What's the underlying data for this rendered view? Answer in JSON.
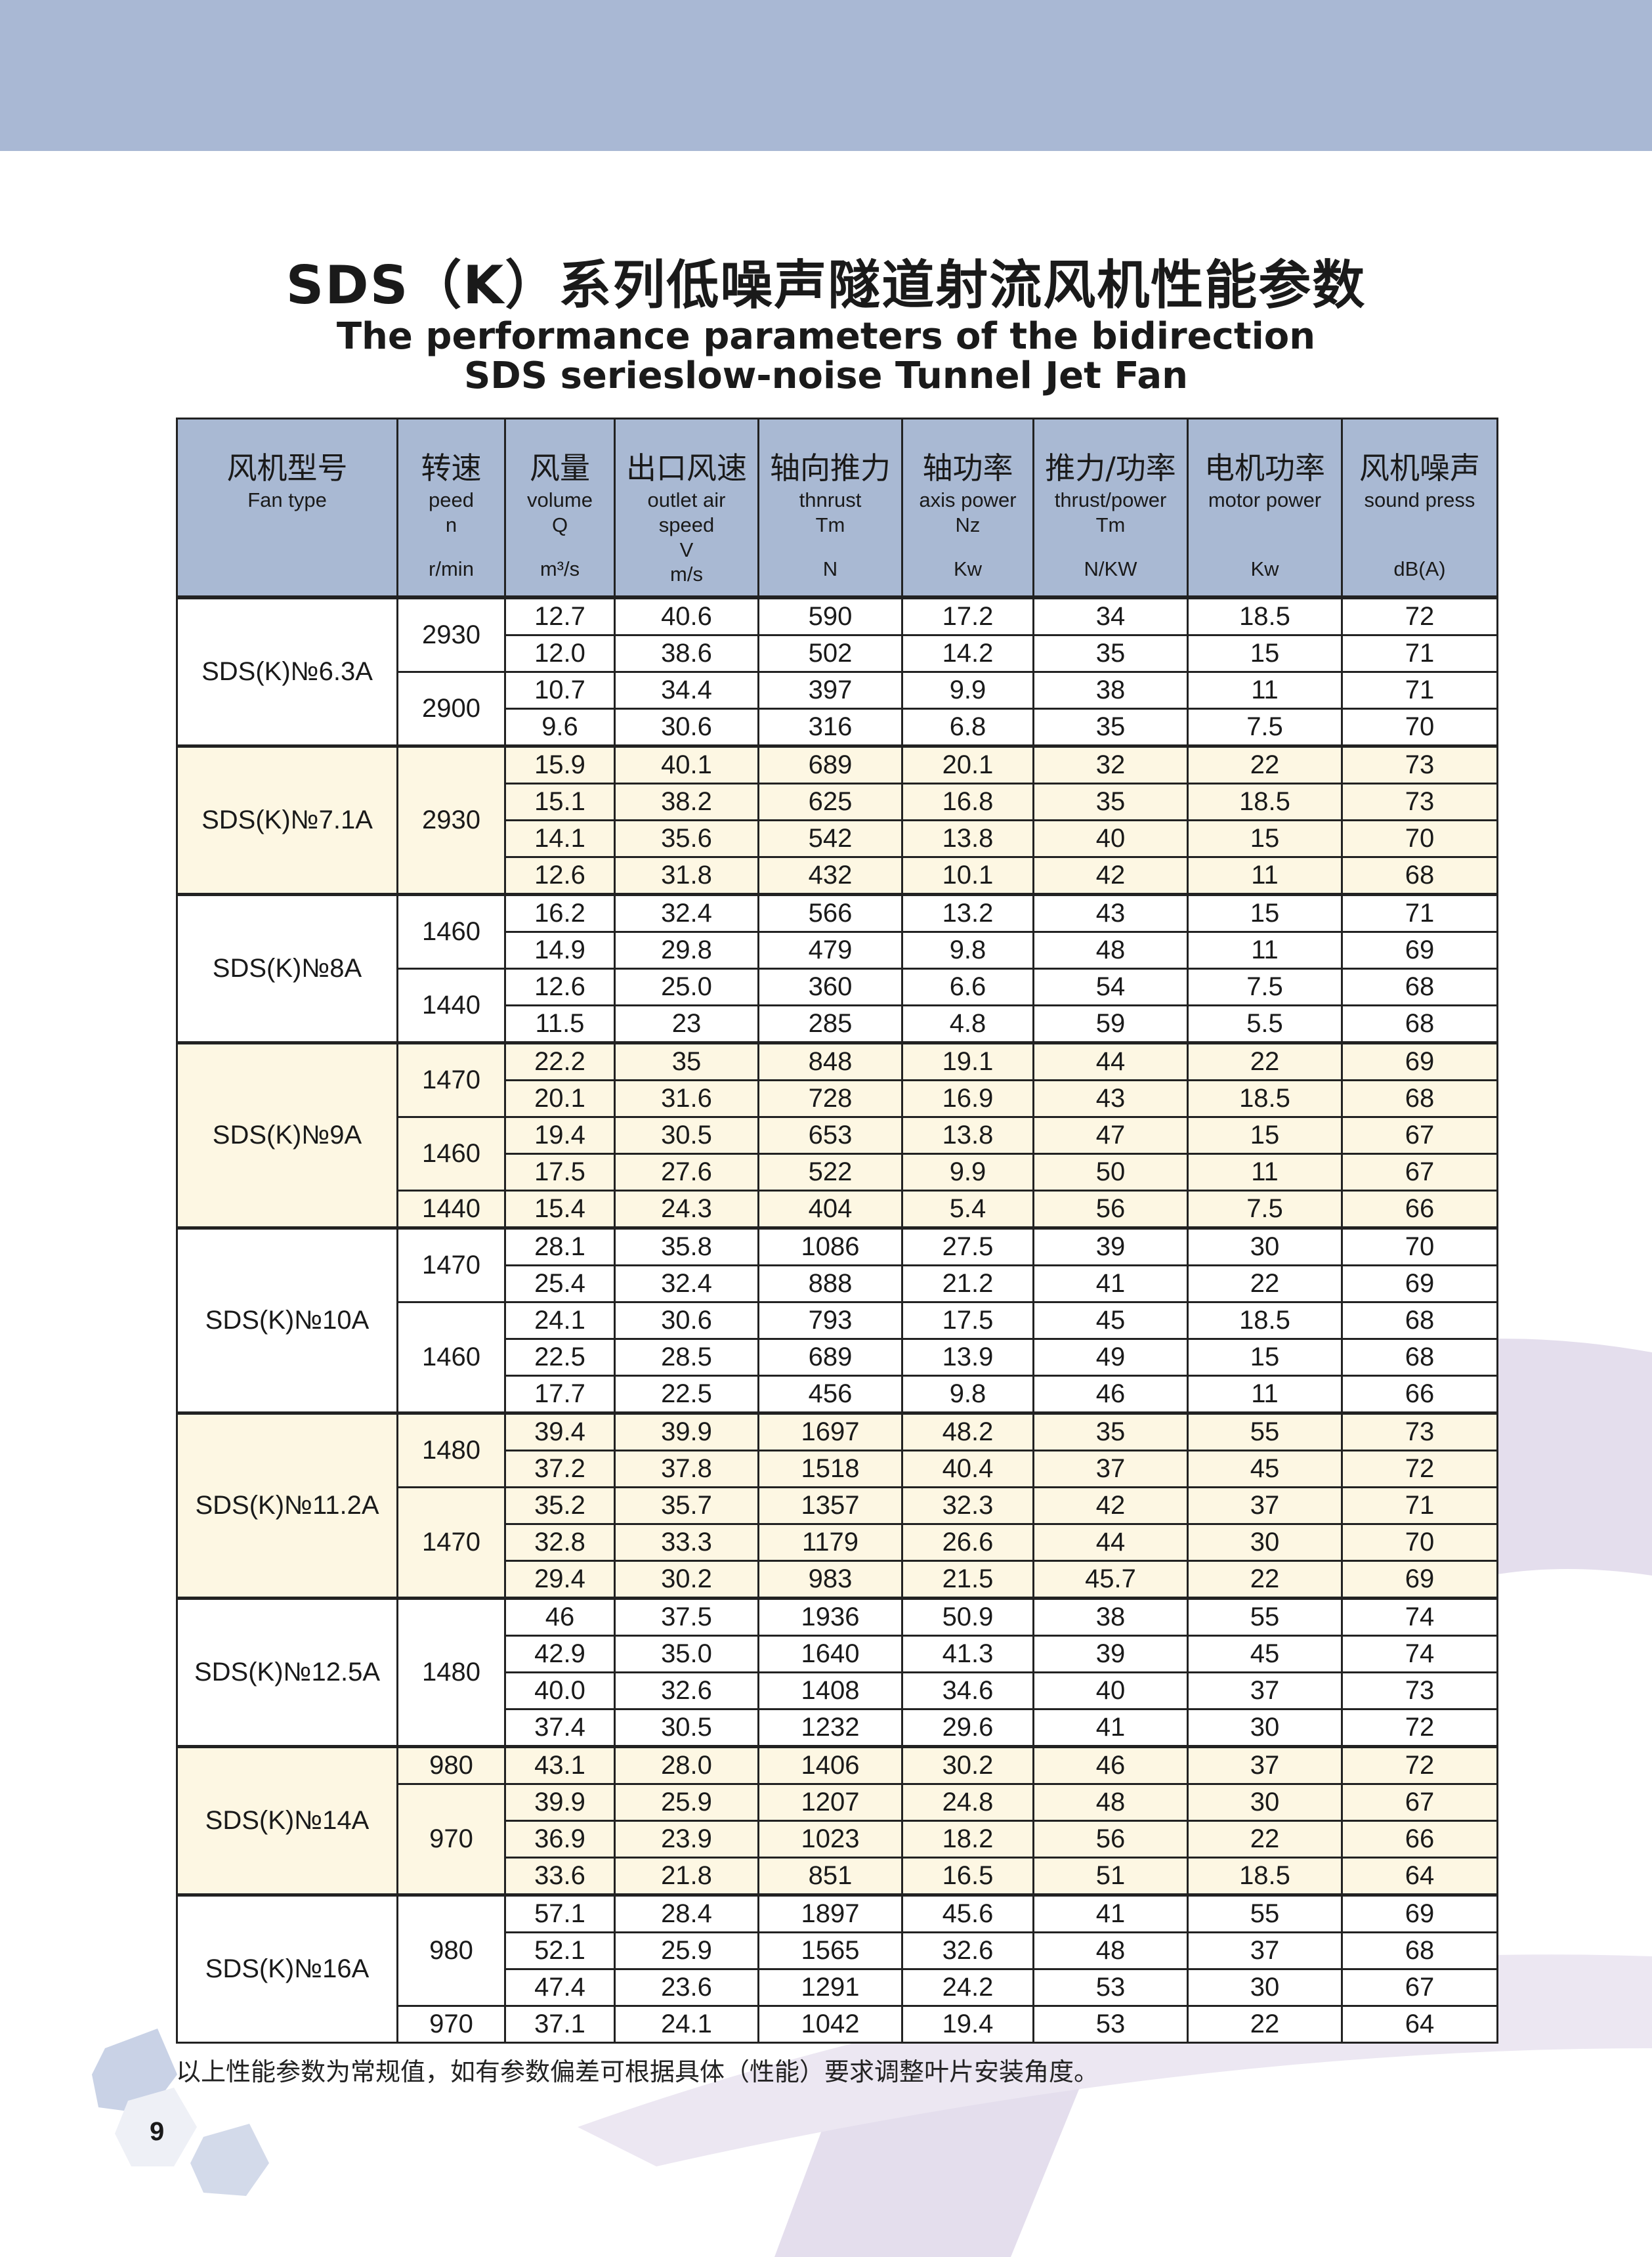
{
  "title_cn": "SDS（K）系列低噪声隧道射流风机性能参数",
  "title_en_line1": "The performance parameters of the bidirection",
  "title_en_line2": "SDS serieslow-noise Tunnel Jet Fan",
  "colors": {
    "banner": "#a9b8d4",
    "header_bg": "#a9b9d3",
    "shaded_row": "#fdf7e3",
    "decoration": "#e4deed"
  },
  "table": {
    "headers": [
      {
        "cn": "风机型号",
        "en": [
          "Fan type"
        ],
        "unit": ""
      },
      {
        "cn": "转速",
        "en": [
          "peed",
          "n"
        ],
        "unit": "r/min"
      },
      {
        "cn": "风量",
        "en": [
          "volume",
          "Q"
        ],
        "unit": "m³/s"
      },
      {
        "cn": "出口风速",
        "en": [
          "outlet air",
          "speed",
          "V"
        ],
        "unit": "m/s"
      },
      {
        "cn": "轴向推力",
        "en": [
          "thnrust",
          "Tm"
        ],
        "unit": "N"
      },
      {
        "cn": "轴功率",
        "en": [
          "axis power",
          "Nz"
        ],
        "unit": "Kw"
      },
      {
        "cn": "推力/功率",
        "en": [
          "thrust/power",
          "Tm"
        ],
        "unit": "N/KW"
      },
      {
        "cn": "电机功率",
        "en": [
          "motor power"
        ],
        "unit": "Kw"
      },
      {
        "cn": "风机噪声",
        "en": [
          "sound press"
        ],
        "unit": "dB(A)"
      }
    ],
    "groups": [
      {
        "model": "SDS(K)№6.3A",
        "shaded": false,
        "speeds": [
          {
            "n": "2930",
            "rows": [
              [
                "12.7",
                "40.6",
                "590",
                "17.2",
                "34",
                "18.5",
                "72"
              ],
              [
                "12.0",
                "38.6",
                "502",
                "14.2",
                "35",
                "15",
                "71"
              ]
            ]
          },
          {
            "n": "2900",
            "rows": [
              [
                "10.7",
                "34.4",
                "397",
                "9.9",
                "38",
                "11",
                "71"
              ],
              [
                "9.6",
                "30.6",
                "316",
                "6.8",
                "35",
                "7.5",
                "70"
              ]
            ]
          }
        ]
      },
      {
        "model": "SDS(K)№7.1A",
        "shaded": true,
        "speeds": [
          {
            "n": "2930",
            "rows": [
              [
                "15.9",
                "40.1",
                "689",
                "20.1",
                "32",
                "22",
                "73"
              ],
              [
                "15.1",
                "38.2",
                "625",
                "16.8",
                "35",
                "18.5",
                "73"
              ],
              [
                "14.1",
                "35.6",
                "542",
                "13.8",
                "40",
                "15",
                "70"
              ],
              [
                "12.6",
                "31.8",
                "432",
                "10.1",
                "42",
                "11",
                "68"
              ]
            ]
          }
        ]
      },
      {
        "model": "SDS(K)№8A",
        "shaded": false,
        "speeds": [
          {
            "n": "1460",
            "rows": [
              [
                "16.2",
                "32.4",
                "566",
                "13.2",
                "43",
                "15",
                "71"
              ],
              [
                "14.9",
                "29.8",
                "479",
                "9.8",
                "48",
                "11",
                "69"
              ]
            ]
          },
          {
            "n": "1440",
            "rows": [
              [
                "12.6",
                "25.0",
                "360",
                "6.6",
                "54",
                "7.5",
                "68"
              ],
              [
                "11.5",
                "23",
                "285",
                "4.8",
                "59",
                "5.5",
                "68"
              ]
            ]
          }
        ]
      },
      {
        "model": "SDS(K)№9A",
        "shaded": true,
        "speeds": [
          {
            "n": "1470",
            "rows": [
              [
                "22.2",
                "35",
                "848",
                "19.1",
                "44",
                "22",
                "69"
              ],
              [
                "20.1",
                "31.6",
                "728",
                "16.9",
                "43",
                "18.5",
                "68"
              ]
            ]
          },
          {
            "n": "1460",
            "rows": [
              [
                "19.4",
                "30.5",
                "653",
                "13.8",
                "47",
                "15",
                "67"
              ],
              [
                "17.5",
                "27.6",
                "522",
                "9.9",
                "50",
                "11",
                "67"
              ]
            ]
          },
          {
            "n": "1440",
            "rows": [
              [
                "15.4",
                "24.3",
                "404",
                "5.4",
                "56",
                "7.5",
                "66"
              ]
            ]
          }
        ]
      },
      {
        "model": "SDS(K)№10A",
        "shaded": false,
        "speeds": [
          {
            "n": "1470",
            "rows": [
              [
                "28.1",
                "35.8",
                "1086",
                "27.5",
                "39",
                "30",
                "70"
              ],
              [
                "25.4",
                "32.4",
                "888",
                "21.2",
                "41",
                "22",
                "69"
              ]
            ]
          },
          {
            "n": "1460",
            "rows": [
              [
                "24.1",
                "30.6",
                "793",
                "17.5",
                "45",
                "18.5",
                "68"
              ],
              [
                "22.5",
                "28.5",
                "689",
                "13.9",
                "49",
                "15",
                "68"
              ],
              [
                "17.7",
                "22.5",
                "456",
                "9.8",
                "46",
                "11",
                "66"
              ]
            ]
          }
        ]
      },
      {
        "model": "SDS(K)№11.2A",
        "shaded": true,
        "speeds": [
          {
            "n": "1480",
            "rows": [
              [
                "39.4",
                "39.9",
                "1697",
                "48.2",
                "35",
                "55",
                "73"
              ],
              [
                "37.2",
                "37.8",
                "1518",
                "40.4",
                "37",
                "45",
                "72"
              ]
            ]
          },
          {
            "n": "1470",
            "rows": [
              [
                "35.2",
                "35.7",
                "1357",
                "32.3",
                "42",
                "37",
                "71"
              ],
              [
                "32.8",
                "33.3",
                "1179",
                "26.6",
                "44",
                "30",
                "70"
              ],
              [
                "29.4",
                "30.2",
                "983",
                "21.5",
                "45.7",
                "22",
                "69"
              ]
            ]
          }
        ]
      },
      {
        "model": "SDS(K)№12.5A",
        "shaded": false,
        "speeds": [
          {
            "n": "1480",
            "rows": [
              [
                "46",
                "37.5",
                "1936",
                "50.9",
                "38",
                "55",
                "74"
              ],
              [
                "42.9",
                "35.0",
                "1640",
                "41.3",
                "39",
                "45",
                "74"
              ],
              [
                "40.0",
                "32.6",
                "1408",
                "34.6",
                "40",
                "37",
                "73"
              ],
              [
                "37.4",
                "30.5",
                "1232",
                "29.6",
                "41",
                "30",
                "72"
              ]
            ]
          }
        ]
      },
      {
        "model": "SDS(K)№14A",
        "shaded": true,
        "speeds": [
          {
            "n": "980",
            "rows": [
              [
                "43.1",
                "28.0",
                "1406",
                "30.2",
                "46",
                "37",
                "72"
              ]
            ]
          },
          {
            "n": "970",
            "rows": [
              [
                "39.9",
                "25.9",
                "1207",
                "24.8",
                "48",
                "30",
                "67"
              ],
              [
                "36.9",
                "23.9",
                "1023",
                "18.2",
                "56",
                "22",
                "66"
              ],
              [
                "33.6",
                "21.8",
                "851",
                "16.5",
                "51",
                "18.5",
                "64"
              ]
            ]
          }
        ]
      },
      {
        "model": "SDS(K)№16A",
        "shaded": false,
        "speeds": [
          {
            "n": "980",
            "rows": [
              [
                "57.1",
                "28.4",
                "1897",
                "45.6",
                "41",
                "55",
                "69"
              ],
              [
                "52.1",
                "25.9",
                "1565",
                "32.6",
                "48",
                "37",
                "68"
              ],
              [
                "47.4",
                "23.6",
                "1291",
                "24.2",
                "53",
                "30",
                "67"
              ]
            ]
          },
          {
            "n": "970",
            "rows": [
              [
                "37.1",
                "24.1",
                "1042",
                "19.4",
                "53",
                "22",
                "64"
              ]
            ]
          }
        ]
      }
    ]
  },
  "note": "以上性能参数为常规值，如有参数偏差可根据具体（性能）要求调整叶片安装角度。",
  "page_number": "9"
}
